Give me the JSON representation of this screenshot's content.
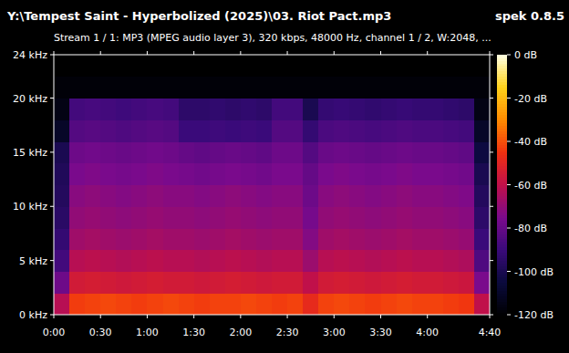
{
  "chart_data": {
    "type": "heatmap",
    "title": "Y:\\Tempest Saint - Hyperbolized (2025)\\03. Riot Pact.mp3",
    "subtitle": "Stream 1 / 1: MP3 (MPEG audio layer 3), 320 kbps, 48000 Hz, channel 1 / 2, W:2048, ...",
    "annotations": [
      "spek 0.8.5"
    ],
    "xlim": [
      0,
      280
    ],
    "xticks": [
      {
        "value": 0,
        "label": "0:00"
      },
      {
        "value": 30,
        "label": "0:30"
      },
      {
        "value": 60,
        "label": "1:00"
      },
      {
        "value": 90,
        "label": "1:30"
      },
      {
        "value": 120,
        "label": "2:00"
      },
      {
        "value": 150,
        "label": "2:30"
      },
      {
        "value": 180,
        "label": "3:00"
      },
      {
        "value": 210,
        "label": "3:30"
      },
      {
        "value": 240,
        "label": "4:00"
      },
      {
        "value": 280,
        "label": "4:40"
      }
    ],
    "ylim": [
      0,
      24
    ],
    "yticks": [
      {
        "value": 0,
        "label": "0 kHz"
      },
      {
        "value": 5,
        "label": "5 kHz"
      },
      {
        "value": 10,
        "label": "10 kHz"
      },
      {
        "value": 15,
        "label": "15 kHz"
      },
      {
        "value": 20,
        "label": "20 kHz"
      },
      {
        "value": 24,
        "label": "24 kHz"
      }
    ],
    "x": [
      0,
      10,
      20,
      30,
      40,
      50,
      60,
      70,
      80,
      90,
      100,
      110,
      120,
      130,
      140,
      150,
      160,
      170,
      180,
      190,
      200,
      210,
      220,
      230,
      240,
      250,
      260,
      270
    ],
    "y": [
      0,
      2,
      4,
      6,
      8,
      10,
      12,
      14,
      16,
      18,
      20,
      22
    ],
    "values": [
      [
        -62,
        -43,
        -42,
        -41,
        -42,
        -43,
        -42,
        -41,
        -42,
        -43,
        -42,
        -42,
        -41,
        -42,
        -43,
        -42,
        -48,
        -42,
        -41,
        -42,
        -43,
        -42,
        -41,
        -42,
        -42,
        -43,
        -44,
        -60
      ],
      [
        -78,
        -55,
        -54,
        -55,
        -56,
        -55,
        -54,
        -55,
        -55,
        -56,
        -55,
        -54,
        -55,
        -56,
        -55,
        -55,
        -60,
        -55,
        -54,
        -55,
        -56,
        -55,
        -54,
        -55,
        -55,
        -56,
        -57,
        -75
      ],
      [
        -88,
        -62,
        -61,
        -62,
        -63,
        -62,
        -61,
        -62,
        -62,
        -63,
        -62,
        -61,
        -62,
        -63,
        -62,
        -62,
        -68,
        -62,
        -61,
        -62,
        -63,
        -62,
        -61,
        -62,
        -62,
        -63,
        -64,
        -85
      ],
      [
        -92,
        -67,
        -66,
        -67,
        -68,
        -67,
        -66,
        -67,
        -67,
        -68,
        -67,
        -66,
        -67,
        -68,
        -67,
        -67,
        -73,
        -67,
        -66,
        -67,
        -68,
        -67,
        -66,
        -67,
        -67,
        -68,
        -69,
        -90
      ],
      [
        -95,
        -70,
        -69,
        -70,
        -71,
        -70,
        -69,
        -70,
        -70,
        -71,
        -70,
        -69,
        -70,
        -71,
        -70,
        -70,
        -76,
        -70,
        -69,
        -70,
        -71,
        -70,
        -69,
        -70,
        -70,
        -71,
        -72,
        -94
      ],
      [
        -97,
        -72,
        -71,
        -72,
        -73,
        -72,
        -71,
        -72,
        -72,
        -73,
        -72,
        -71,
        -72,
        -73,
        -72,
        -72,
        -78,
        -72,
        -71,
        -72,
        -73,
        -72,
        -71,
        -72,
        -72,
        -73,
        -74,
        -97
      ],
      [
        -98,
        -75,
        -74,
        -75,
        -76,
        -75,
        -74,
        -75,
        -76,
        -77,
        -76,
        -75,
        -76,
        -77,
        -75,
        -75,
        -80,
        -75,
        -74,
        -75,
        -76,
        -75,
        -74,
        -75,
        -75,
        -76,
        -77,
        -100
      ],
      [
        -100,
        -78,
        -77,
        -78,
        -79,
        -78,
        -77,
        -78,
        -80,
        -81,
        -80,
        -79,
        -80,
        -81,
        -78,
        -78,
        -84,
        -79,
        -78,
        -79,
        -80,
        -79,
        -78,
        -79,
        -79,
        -80,
        -81,
        -104
      ],
      [
        -110,
        -84,
        -83,
        -84,
        -85,
        -84,
        -83,
        -84,
        -90,
        -90,
        -89,
        -90,
        -89,
        -90,
        -84,
        -84,
        -92,
        -86,
        -85,
        -86,
        -87,
        -86,
        -85,
        -86,
        -86,
        -87,
        -88,
        -110
      ],
      [
        -115,
        -88,
        -87,
        -88,
        -89,
        -88,
        -87,
        -88,
        -94,
        -94,
        -93,
        -94,
        -93,
        -94,
        -88,
        -88,
        -100,
        -92,
        -91,
        -92,
        -93,
        -92,
        -91,
        -92,
        -92,
        -93,
        -94,
        -115
      ],
      [
        -118,
        -118,
        -118,
        -118,
        -118,
        -118,
        -118,
        -118,
        -118,
        -118,
        -118,
        -118,
        -118,
        -118,
        -118,
        -118,
        -118,
        -118,
        -118,
        -118,
        -118,
        -118,
        -118,
        -118,
        -118,
        -118,
        -118,
        -118
      ],
      [
        -120,
        -120,
        -120,
        -120,
        -120,
        -120,
        -120,
        -120,
        -120,
        -120,
        -120,
        -120,
        -120,
        -120,
        -120,
        -120,
        -120,
        -120,
        -120,
        -120,
        -120,
        -120,
        -120,
        -120,
        -120,
        -120,
        -120,
        -120
      ]
    ],
    "colorbar_range": [
      -120,
      0
    ],
    "colorbar_ticks": [
      {
        "value": 0,
        "label": "0 dB"
      },
      {
        "value": -20,
        "label": "-20 dB"
      },
      {
        "value": -40,
        "label": "-40 dB"
      },
      {
        "value": -60,
        "label": "-60 dB"
      },
      {
        "value": -80,
        "label": "-80 dB"
      },
      {
        "value": -100,
        "label": "-100 dB"
      },
      {
        "value": -120,
        "label": "-120 dB"
      }
    ]
  }
}
